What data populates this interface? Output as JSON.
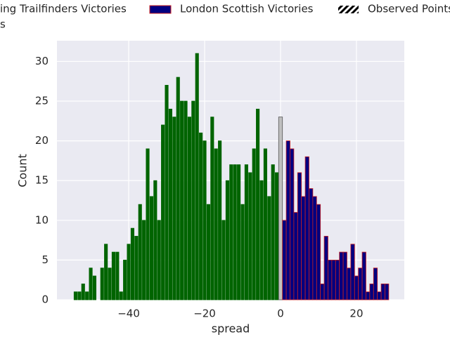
{
  "chart_data": {
    "type": "histogram",
    "xlabel": "spread",
    "ylabel": "Count",
    "xlim": [
      -58.9,
      32.6
    ],
    "ylim": [
      0,
      32.6
    ],
    "xticks": [
      {
        "value": -40,
        "label": "−40"
      },
      {
        "value": -20,
        "label": "−20"
      },
      0,
      20
    ],
    "yticks": [
      0,
      5,
      10,
      15,
      20,
      25,
      30
    ],
    "grid": true,
    "series": [
      {
        "name": "ing Trailfinders Victories",
        "color": "#006400",
        "edgecolor": "#006400",
        "rwidth": 0.8,
        "bins": [
          -54.5,
          -53.5,
          -52.5,
          -51.5,
          -50.5,
          -49.5,
          -48.5,
          -47.5,
          -46.5,
          -45.5,
          -44.5,
          -43.5,
          -42.5,
          -41.5,
          -40.5,
          -39.5,
          -38.5,
          -37.5,
          -36.5,
          -35.5,
          -34.5,
          -33.5,
          -32.5,
          -31.5,
          -30.5,
          -29.5,
          -28.5,
          -27.5,
          -26.5,
          -25.5,
          -24.5,
          -23.5,
          -22.5,
          -21.5,
          -20.5,
          -19.5,
          -18.5,
          -17.5,
          -16.5,
          -15.5,
          -14.5,
          -13.5,
          -12.5,
          -11.5,
          -10.5,
          -9.5,
          -8.5,
          -7.5,
          -6.5,
          -5.5,
          -4.5,
          -3.5,
          -2.5,
          -1.5,
          -0.5
        ],
        "values": [
          1,
          1,
          2,
          1,
          4,
          3,
          0,
          4,
          7,
          4,
          6,
          6,
          1,
          5,
          7,
          9,
          8,
          12,
          10,
          19,
          13,
          15,
          10,
          22,
          27,
          24,
          23,
          28,
          25,
          25,
          23,
          25,
          31,
          21,
          20,
          12,
          23,
          19,
          20,
          10,
          15,
          17,
          17,
          17,
          12,
          17,
          16,
          19,
          24,
          15,
          19,
          13,
          17,
          16
        ]
      },
      {
        "name": "s",
        "color": "#c0c0c0",
        "edgecolor": "#555555",
        "rwidth": 1.0,
        "bins": [
          -0.5,
          0.5
        ],
        "values": [
          23
        ]
      },
      {
        "name": "London Scottish Victories",
        "color": "#000080",
        "edgecolor": "#cc2222",
        "rwidth": 1.0,
        "bins": [
          0.5,
          1.5,
          2.5,
          3.5,
          4.5,
          5.5,
          6.5,
          7.5,
          8.5,
          9.5,
          10.5,
          11.5,
          12.5,
          13.5,
          14.5,
          15.5,
          16.5,
          17.5,
          18.5,
          19.5,
          20.5,
          21.5,
          22.5,
          23.5,
          24.5,
          25.5,
          26.5,
          27.5,
          28.5
        ],
        "values": [
          10,
          20,
          19,
          11,
          16,
          13,
          18,
          14,
          13,
          12,
          2,
          8,
          5,
          5,
          5,
          6,
          6,
          4,
          7,
          3,
          4,
          6,
          1,
          2,
          4,
          1,
          2,
          2
        ]
      }
    ],
    "extra_legend": "Observed Points"
  }
}
